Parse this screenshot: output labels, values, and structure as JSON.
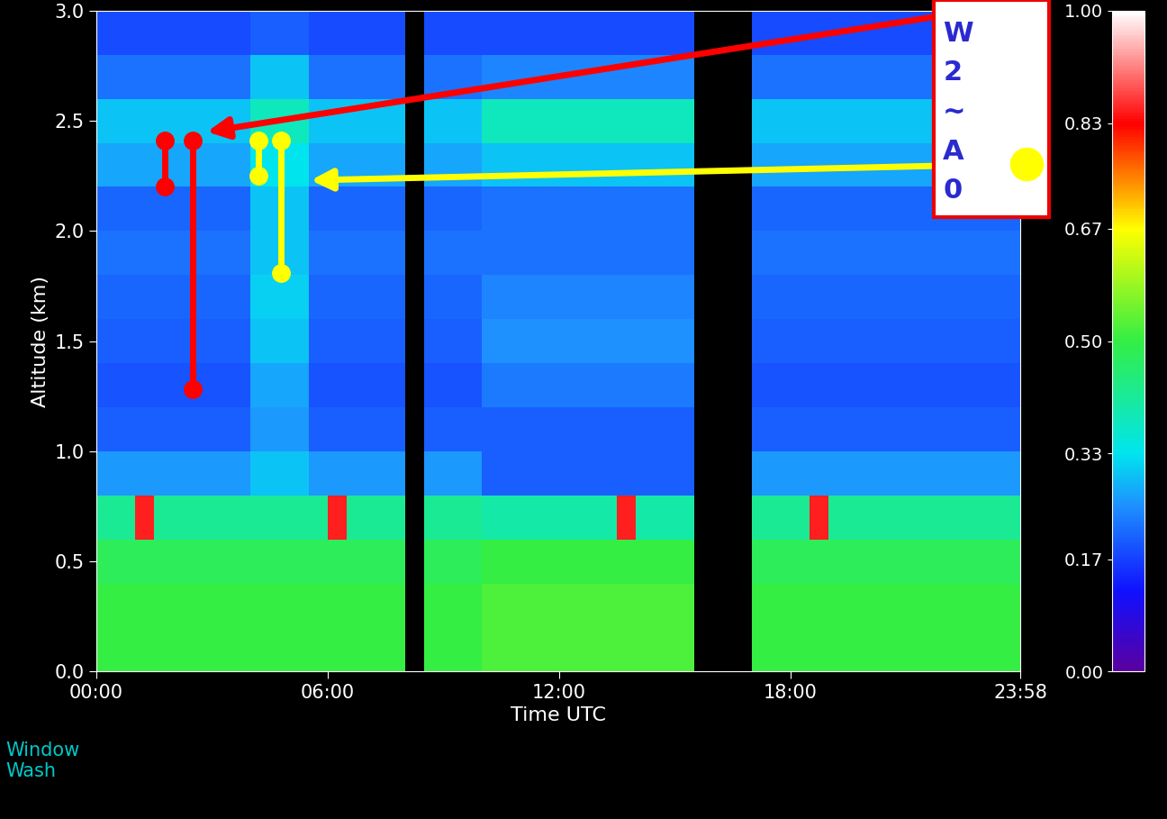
{
  "chart_data": {
    "type": "heatmap",
    "xlabel": "Time UTC",
    "ylabel": "Altitude (km)",
    "xlim": [
      0,
      23.967
    ],
    "ylim": [
      0.0,
      3.0
    ],
    "xticks": [
      {
        "value": 0,
        "label": "00:00"
      },
      {
        "value": 6,
        "label": "06:00"
      },
      {
        "value": 12,
        "label": "12:00"
      },
      {
        "value": 18,
        "label": "18:00"
      },
      {
        "value": 23.967,
        "label": "23:58"
      }
    ],
    "yticks": [
      0.0,
      0.5,
      1.0,
      1.5,
      2.0,
      2.5,
      3.0
    ],
    "x_edges": [
      0,
      0.5,
      1.0,
      1.5,
      2.0,
      2.5,
      3.0,
      3.5,
      4.0,
      4.5,
      5.0,
      5.5,
      6.0,
      6.5,
      7.0,
      7.5,
      8.0,
      8.5,
      9.0,
      9.5,
      10.0,
      10.5,
      11.0,
      11.5,
      12.0,
      12.5,
      13.0,
      13.5,
      14.0,
      14.5,
      15.0,
      15.5,
      16.0,
      16.5,
      17.0,
      17.5,
      18.0,
      18.5,
      19.0,
      19.5,
      20.0,
      20.5,
      21.0,
      21.5,
      22.0,
      22.5,
      23.0,
      23.5,
      24.0
    ],
    "y_edges": [
      0.0,
      0.2,
      0.4,
      0.6,
      0.8,
      1.0,
      1.2,
      1.4,
      1.6,
      1.8,
      2.0,
      2.2,
      2.4,
      2.6,
      2.8,
      3.0
    ],
    "cells": [
      [
        0.5,
        0.5,
        0.5,
        0.5,
        0.5,
        0.5,
        0.5,
        0.5,
        0.5,
        0.5,
        0.5,
        0.5,
        0.5,
        0.5,
        0.5,
        0.5,
        null,
        0.5,
        0.5,
        0.5,
        0.52,
        0.52,
        0.52,
        0.52,
        0.52,
        0.52,
        0.52,
        0.52,
        0.52,
        0.52,
        0.52,
        null,
        null,
        null,
        0.5,
        0.5,
        0.5,
        0.5,
        0.5,
        0.5,
        0.5,
        0.5,
        0.5,
        0.5,
        0.5,
        0.5,
        0.5,
        0.5
      ],
      [
        0.5,
        0.5,
        0.5,
        0.5,
        0.5,
        0.5,
        0.5,
        0.5,
        0.5,
        0.5,
        0.5,
        0.5,
        0.5,
        0.5,
        0.5,
        0.5,
        null,
        0.5,
        0.5,
        0.5,
        0.52,
        0.52,
        0.52,
        0.52,
        0.52,
        0.52,
        0.52,
        0.52,
        0.52,
        0.52,
        0.52,
        null,
        null,
        null,
        0.5,
        0.5,
        0.5,
        0.5,
        0.5,
        0.5,
        0.5,
        0.5,
        0.5,
        0.5,
        0.5,
        0.5,
        0.5,
        0.5
      ],
      [
        0.48,
        0.48,
        0.48,
        0.48,
        0.48,
        0.48,
        0.48,
        0.48,
        0.48,
        0.48,
        0.48,
        0.48,
        0.48,
        0.48,
        0.48,
        0.48,
        null,
        0.48,
        0.48,
        0.48,
        0.5,
        0.5,
        0.5,
        0.5,
        0.5,
        0.5,
        0.5,
        0.5,
        0.5,
        0.5,
        0.5,
        null,
        null,
        null,
        0.48,
        0.48,
        0.48,
        0.48,
        0.48,
        0.48,
        0.48,
        0.48,
        0.48,
        0.48,
        0.48,
        0.48,
        0.48,
        0.48
      ],
      [
        0.42,
        0.42,
        0.85,
        0.42,
        0.42,
        0.42,
        0.42,
        0.42,
        0.42,
        0.42,
        0.42,
        0.42,
        0.85,
        0.42,
        0.42,
        0.42,
        null,
        0.42,
        0.42,
        0.42,
        0.4,
        0.4,
        0.4,
        0.4,
        0.4,
        0.4,
        0.4,
        0.85,
        0.4,
        0.4,
        0.4,
        null,
        null,
        null,
        0.42,
        0.42,
        0.42,
        0.85,
        0.42,
        0.42,
        0.42,
        0.42,
        0.42,
        0.42,
        0.42,
        0.42,
        0.42,
        0.42
      ],
      [
        0.26,
        0.26,
        0.26,
        0.26,
        0.26,
        0.26,
        0.26,
        0.26,
        0.3,
        0.3,
        0.3,
        0.26,
        0.26,
        0.26,
        0.26,
        0.26,
        null,
        0.26,
        0.26,
        0.26,
        0.2,
        0.2,
        0.2,
        0.2,
        0.2,
        0.2,
        0.2,
        0.2,
        0.2,
        0.2,
        0.2,
        null,
        null,
        null,
        0.26,
        0.26,
        0.26,
        0.26,
        0.26,
        0.26,
        0.26,
        0.26,
        0.26,
        0.26,
        0.26,
        0.26,
        0.26,
        0.26
      ],
      [
        0.2,
        0.2,
        0.2,
        0.2,
        0.2,
        0.2,
        0.2,
        0.2,
        0.26,
        0.26,
        0.26,
        0.2,
        0.2,
        0.2,
        0.2,
        0.2,
        null,
        0.2,
        0.2,
        0.2,
        0.2,
        0.2,
        0.2,
        0.2,
        0.2,
        0.2,
        0.2,
        0.2,
        0.2,
        0.2,
        0.2,
        null,
        null,
        null,
        0.2,
        0.2,
        0.2,
        0.2,
        0.2,
        0.2,
        0.2,
        0.2,
        0.2,
        0.2,
        0.2,
        0.2,
        0.2,
        0.2
      ],
      [
        0.19,
        0.19,
        0.19,
        0.19,
        0.19,
        0.19,
        0.19,
        0.19,
        0.27,
        0.27,
        0.27,
        0.19,
        0.19,
        0.19,
        0.19,
        0.19,
        null,
        0.19,
        0.19,
        0.19,
        0.23,
        0.23,
        0.23,
        0.23,
        0.23,
        0.23,
        0.23,
        0.23,
        0.23,
        0.23,
        0.23,
        null,
        null,
        null,
        0.19,
        0.19,
        0.19,
        0.19,
        0.19,
        0.19,
        0.19,
        0.19,
        0.19,
        0.19,
        0.19,
        0.19,
        0.19,
        0.19
      ],
      [
        0.2,
        0.2,
        0.2,
        0.2,
        0.2,
        0.2,
        0.2,
        0.2,
        0.3,
        0.3,
        0.3,
        0.2,
        0.2,
        0.2,
        0.2,
        0.2,
        null,
        0.2,
        0.2,
        0.2,
        0.25,
        0.25,
        0.25,
        0.25,
        0.25,
        0.25,
        0.25,
        0.25,
        0.25,
        0.25,
        0.25,
        null,
        null,
        null,
        0.2,
        0.2,
        0.2,
        0.2,
        0.2,
        0.2,
        0.2,
        0.2,
        0.2,
        0.2,
        0.2,
        0.2,
        0.2,
        0.2
      ],
      [
        0.21,
        0.21,
        0.21,
        0.21,
        0.21,
        0.21,
        0.21,
        0.21,
        0.31,
        0.31,
        0.31,
        0.21,
        0.21,
        0.21,
        0.21,
        0.21,
        null,
        0.21,
        0.21,
        0.21,
        0.24,
        0.24,
        0.24,
        0.24,
        0.24,
        0.24,
        0.24,
        0.24,
        0.24,
        0.24,
        0.24,
        null,
        null,
        null,
        0.21,
        0.21,
        0.21,
        0.21,
        0.21,
        0.21,
        0.21,
        0.21,
        0.21,
        0.21,
        0.21,
        0.21,
        0.21,
        0.21
      ],
      [
        0.22,
        0.22,
        0.22,
        0.22,
        0.22,
        0.22,
        0.22,
        0.22,
        0.3,
        0.3,
        0.3,
        0.22,
        0.22,
        0.22,
        0.22,
        0.22,
        null,
        0.22,
        0.22,
        0.22,
        0.22,
        0.22,
        0.22,
        0.22,
        0.22,
        0.22,
        0.22,
        0.22,
        0.22,
        0.22,
        0.22,
        null,
        null,
        null,
        0.22,
        0.22,
        0.22,
        0.22,
        0.22,
        0.22,
        0.22,
        0.22,
        0.22,
        0.22,
        0.22,
        0.22,
        0.22,
        0.22
      ],
      [
        0.21,
        0.21,
        0.21,
        0.21,
        0.21,
        0.21,
        0.21,
        0.21,
        0.3,
        0.3,
        0.3,
        0.21,
        0.21,
        0.21,
        0.21,
        0.21,
        null,
        0.21,
        0.21,
        0.21,
        0.22,
        0.22,
        0.22,
        0.22,
        0.22,
        0.22,
        0.22,
        0.22,
        0.22,
        0.22,
        0.22,
        null,
        null,
        null,
        0.21,
        0.21,
        0.21,
        0.21,
        0.21,
        0.21,
        0.21,
        0.21,
        0.21,
        0.21,
        0.21,
        0.21,
        0.21,
        0.21
      ],
      [
        0.27,
        0.27,
        0.27,
        0.27,
        0.27,
        0.27,
        0.27,
        0.27,
        0.33,
        0.33,
        0.33,
        0.27,
        0.27,
        0.27,
        0.27,
        0.27,
        null,
        0.27,
        0.27,
        0.27,
        0.3,
        0.3,
        0.3,
        0.3,
        0.3,
        0.3,
        0.3,
        0.3,
        0.3,
        0.3,
        0.3,
        null,
        null,
        null,
        0.27,
        0.27,
        0.27,
        0.27,
        0.27,
        0.27,
        0.27,
        0.27,
        0.27,
        0.27,
        0.27,
        0.27,
        0.27,
        0.27
      ],
      [
        0.3,
        0.3,
        0.3,
        0.3,
        0.3,
        0.3,
        0.3,
        0.3,
        0.38,
        0.38,
        0.38,
        0.3,
        0.3,
        0.3,
        0.3,
        0.3,
        null,
        0.3,
        0.3,
        0.3,
        0.38,
        0.38,
        0.38,
        0.38,
        0.38,
        0.38,
        0.38,
        0.38,
        0.38,
        0.38,
        0.38,
        null,
        null,
        null,
        0.3,
        0.3,
        0.3,
        0.3,
        0.3,
        0.3,
        0.3,
        0.3,
        0.3,
        0.3,
        0.3,
        0.3,
        0.3,
        0.3
      ],
      [
        0.22,
        0.22,
        0.22,
        0.22,
        0.22,
        0.22,
        0.22,
        0.22,
        0.3,
        0.3,
        0.3,
        0.22,
        0.22,
        0.22,
        0.22,
        0.22,
        null,
        0.22,
        0.22,
        0.22,
        0.24,
        0.24,
        0.24,
        0.24,
        0.24,
        0.24,
        0.24,
        0.24,
        0.24,
        0.24,
        0.24,
        null,
        null,
        null,
        0.22,
        0.22,
        0.22,
        0.22,
        0.22,
        0.22,
        0.22,
        0.22,
        0.22,
        0.22,
        0.22,
        0.22,
        0.22,
        0.22
      ],
      [
        0.18,
        0.18,
        0.18,
        0.18,
        0.18,
        0.18,
        0.18,
        0.18,
        0.2,
        0.2,
        0.2,
        0.18,
        0.18,
        0.18,
        0.18,
        0.18,
        null,
        0.18,
        0.18,
        0.18,
        0.18,
        0.18,
        0.18,
        0.18,
        0.18,
        0.18,
        0.18,
        0.18,
        0.18,
        0.18,
        0.18,
        null,
        null,
        null,
        0.18,
        0.18,
        0.18,
        0.18,
        0.18,
        0.18,
        0.18,
        0.18,
        0.18,
        0.18,
        0.18,
        0.18,
        0.18,
        0.18
      ]
    ],
    "colorbar": {
      "range": [
        0,
        1
      ],
      "ticks": [
        {
          "value": 0,
          "label": "0.00"
        },
        {
          "value": 0.17,
          "label": "0.17"
        },
        {
          "value": 0.33,
          "label": "0.33"
        },
        {
          "value": 0.5,
          "label": "0.50"
        },
        {
          "value": 0.67,
          "label": "0.67"
        },
        {
          "value": 0.83,
          "label": "0.83"
        },
        {
          "value": 1,
          "label": "1.00"
        }
      ]
    },
    "segments": [
      {
        "x": 1.78,
        "y": [
          2.41,
          2.2
        ],
        "color": "#ff0000"
      },
      {
        "x": 2.5,
        "y": [
          2.41,
          1.28
        ],
        "color": "#ff0000"
      },
      {
        "x": 4.2,
        "y": [
          2.41,
          2.25
        ],
        "color": "#ffff00"
      },
      {
        "x": 4.79,
        "y": [
          2.41,
          1.81
        ],
        "color": "#ffff00"
      }
    ],
    "arrows": [
      {
        "to": [
          2.87,
          2.45
        ],
        "color": "#ff0000"
      },
      {
        "to": [
          5.56,
          2.23
        ],
        "color": "#ffff00"
      }
    ],
    "note_lines": [
      "W",
      "2",
      "~",
      "A",
      "0"
    ],
    "footnote": "Window\nWash"
  }
}
